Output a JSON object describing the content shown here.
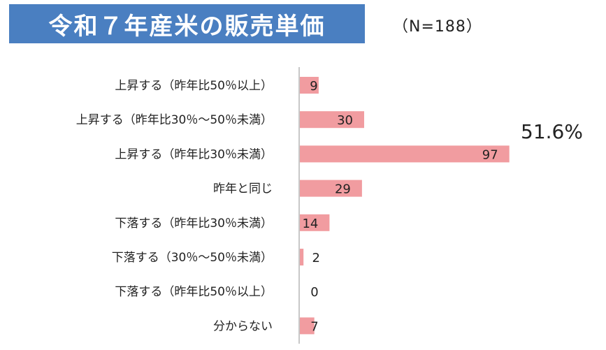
{
  "title": "令和７年産米の販売単価",
  "sample_size": "（N=188）",
  "annotation": "51.6%",
  "colors": {
    "title_bg": "#4a7fc1",
    "bar": "#f19ca0",
    "axis": "#c8c8c8"
  },
  "chart_data": {
    "type": "bar",
    "orientation": "horizontal",
    "title": "令和７年産米の販売単価",
    "categories": [
      "上昇する（昨年比50％以上）",
      "上昇する（昨年比30％～50％未満）",
      "上昇する（昨年比30％未満）",
      "昨年と同じ",
      "下落する（昨年比30％未満）",
      "下落する（30％～50％未満）",
      "下落する（昨年比50％以上）",
      "分からない"
    ],
    "values": [
      9,
      30,
      97,
      29,
      14,
      2,
      0,
      7
    ],
    "xlim": [
      0,
      100
    ],
    "grid": false,
    "legend": "none"
  }
}
